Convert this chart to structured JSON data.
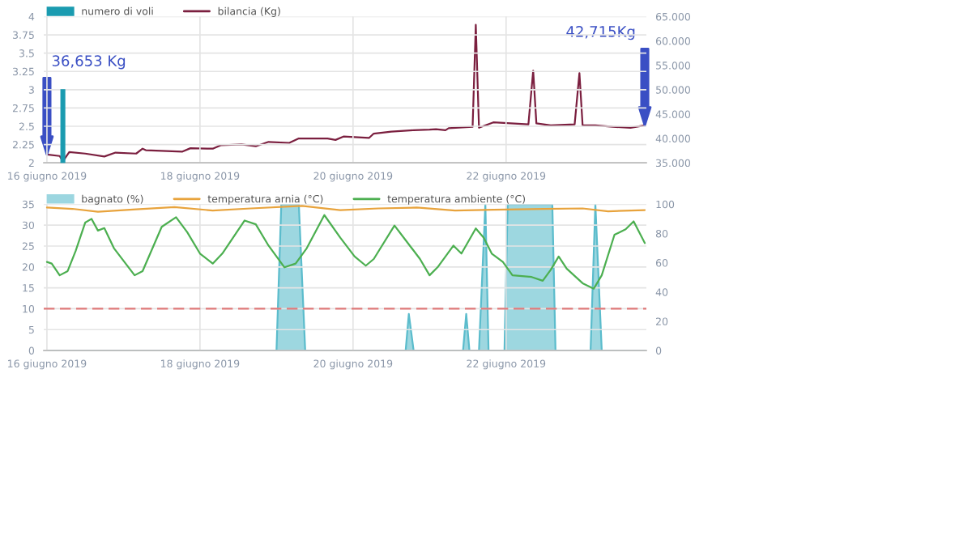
{
  "chart_data": [
    {
      "type": "line",
      "xlim": [
        "2019-06-15T23:00",
        "2019-06-23T20:00"
      ],
      "xticks": [
        {
          "value": "2019-06-16",
          "label": "16 giugno 2019"
        },
        {
          "value": "2019-06-18",
          "label": "18 giugno 2019"
        },
        {
          "value": "2019-06-20",
          "label": "20 giugno 2019"
        },
        {
          "value": "2019-06-22",
          "label": "22 giugno 2019"
        }
      ],
      "ylim": [
        2,
        4
      ],
      "yticks": [
        2,
        2.25,
        2.5,
        2.75,
        3,
        3.25,
        3.5,
        3.75,
        4
      ],
      "y2lim": [
        35,
        65
      ],
      "y2ticks": [
        {
          "value": 35,
          "label": "35.000"
        },
        {
          "value": 40,
          "label": "40.000"
        },
        {
          "value": 45,
          "label": "45.000"
        },
        {
          "value": 50,
          "label": "50.000"
        },
        {
          "value": 55,
          "label": "55.000"
        },
        {
          "value": 60,
          "label": "60.000"
        },
        {
          "value": 65,
          "label": "65.000"
        }
      ],
      "grid": true,
      "legend": "top left",
      "series": [
        {
          "type": "bar",
          "name": "numero di voli",
          "color": "#1a9bb0",
          "x": [
            "2019-06-16T05:00"
          ],
          "values": [
            3
          ]
        },
        {
          "type": "line",
          "axis": "y2",
          "name": "bilancia (Kg)",
          "color": "#7b1f3f",
          "x": [
            "2019-06-16T00:00",
            "2019-06-16T04:00",
            "2019-06-16T05:00",
            "2019-06-16T07:00",
            "2019-06-16T12:00",
            "2019-06-16T18:00",
            "2019-06-16T21:30",
            "2019-06-17T04:00",
            "2019-06-17T06:00",
            "2019-06-17T07:00",
            "2019-06-17T18:30",
            "2019-06-17T21:00",
            "2019-06-18T04:00",
            "2019-06-18T06:30",
            "2019-06-18T13:00",
            "2019-06-18T17:30",
            "2019-06-18T21:30",
            "2019-06-19T04:00",
            "2019-06-19T07:00",
            "2019-06-19T16:00",
            "2019-06-19T18:30",
            "2019-06-19T21:00",
            "2019-06-20T05:00",
            "2019-06-20T06:30",
            "2019-06-20T12:00",
            "2019-06-20T19:00",
            "2019-06-21T00:00",
            "2019-06-21T02:00",
            "2019-06-21T05:00",
            "2019-06-21T06:00",
            "2019-06-21T13:30",
            "2019-06-21T14:30",
            "2019-06-21T15:30",
            "2019-06-21T20:00",
            "2019-06-22T01:30",
            "2019-06-22T07:00",
            "2019-06-22T08:30",
            "2019-06-22T09:30",
            "2019-06-22T14:00",
            "2019-06-22T21:30",
            "2019-06-22T23:00",
            "2019-06-23T00:00",
            "2019-06-23T04:00",
            "2019-06-23T09:30",
            "2019-06-23T15:00",
            "2019-06-23T19:30"
          ],
          "values": [
            36.7,
            36.4,
            35.3,
            37.2,
            36.9,
            36.3,
            37.1,
            36.9,
            37.9,
            37.6,
            37.3,
            38.0,
            37.9,
            38.6,
            38.8,
            38.4,
            39.3,
            39.1,
            40.0,
            40.0,
            39.7,
            40.4,
            40.1,
            41.0,
            41.4,
            41.7,
            41.8,
            41.9,
            41.7,
            42.1,
            42.4,
            63.3,
            42.2,
            43.3,
            43.1,
            42.9,
            53.9,
            43.1,
            42.7,
            42.9,
            53.4,
            42.7,
            42.7,
            42.4,
            42.2,
            42.7
          ]
        }
      ],
      "annotations": [
        "36,653 Kg",
        "42,715Kg"
      ]
    },
    {
      "type": "line",
      "xlim": [
        "2019-06-15T23:00",
        "2019-06-23T20:00"
      ],
      "xticks": [
        {
          "value": "2019-06-16",
          "label": "16 giugno 2019"
        },
        {
          "value": "2019-06-18",
          "label": "18 giugno 2019"
        },
        {
          "value": "2019-06-20",
          "label": "20 giugno 2019"
        },
        {
          "value": "2019-06-22",
          "label": "22 giugno 2019"
        }
      ],
      "ylim": [
        0,
        35
      ],
      "yticks": [
        0,
        5,
        10,
        15,
        20,
        25,
        30,
        35
      ],
      "y2lim": [
        0,
        100
      ],
      "y2ticks": [
        0,
        20,
        40,
        60,
        80,
        100
      ],
      "grid": true,
      "legend": "top left",
      "ref_lines": [
        {
          "axis": "y",
          "value": 10,
          "color": "#e07a7a",
          "line_style": "dashed"
        }
      ],
      "series": [
        {
          "type": "area",
          "axis": "y2",
          "name": "bagnato (%)",
          "color": "#5bbccc",
          "x": [
            "2019-06-16T00:00",
            "2019-06-19T00:00",
            "2019-06-19T01:30",
            "2019-06-19T07:00",
            "2019-06-19T09:00",
            "2019-06-20T16:30",
            "2019-06-20T17:30",
            "2019-06-20T19:00",
            "2019-06-21T10:30",
            "2019-06-21T11:30",
            "2019-06-21T12:30",
            "2019-06-21T15:30",
            "2019-06-21T17:30",
            "2019-06-21T18:30",
            "2019-06-21T23:30",
            "2019-06-22T00:30",
            "2019-06-22T14:30",
            "2019-06-22T15:30",
            "2019-06-23T02:30",
            "2019-06-23T04:00",
            "2019-06-23T06:00",
            "2019-06-23T19:30"
          ],
          "values": [
            0,
            0,
            100,
            100,
            0,
            0,
            25,
            0,
            0,
            25,
            0,
            0,
            100,
            0,
            0,
            100,
            100,
            0,
            0,
            100,
            0,
            0
          ]
        },
        {
          "type": "line",
          "name": "temperatura arnia (°C)",
          "color": "#e8a33c",
          "x": [
            "2019-06-16T00:00",
            "2019-06-16T08:00",
            "2019-06-16T16:00",
            "2019-06-17T04:00",
            "2019-06-17T16:00",
            "2019-06-18T04:00",
            "2019-06-18T16:00",
            "2019-06-19T08:00",
            "2019-06-19T20:00",
            "2019-06-20T08:00",
            "2019-06-20T20:00",
            "2019-06-21T08:00",
            "2019-06-21T20:00",
            "2019-06-22T12:00",
            "2019-06-23T00:00",
            "2019-06-23T08:00",
            "2019-06-23T19:30"
          ],
          "values": [
            34.2,
            33.9,
            33.2,
            33.8,
            34.3,
            33.5,
            34.0,
            34.6,
            33.6,
            34.0,
            34.2,
            33.5,
            33.7,
            33.9,
            34.0,
            33.3,
            33.6
          ]
        },
        {
          "type": "line",
          "name": "temperatura ambiente (°C)",
          "color": "#4caf50",
          "x": [
            "2019-06-16T00:00",
            "2019-06-16T01:30",
            "2019-06-16T04:00",
            "2019-06-16T06:30",
            "2019-06-16T09:00",
            "2019-06-16T12:00",
            "2019-06-16T14:00",
            "2019-06-16T16:00",
            "2019-06-16T18:00",
            "2019-06-16T21:00",
            "2019-06-17T03:30",
            "2019-06-17T06:00",
            "2019-06-17T12:00",
            "2019-06-17T16:30",
            "2019-06-17T20:00",
            "2019-06-18T00:00",
            "2019-06-18T04:00",
            "2019-06-18T07:00",
            "2019-06-18T14:00",
            "2019-06-18T17:30",
            "2019-06-18T21:30",
            "2019-06-19T02:30",
            "2019-06-19T06:00",
            "2019-06-19T09:30",
            "2019-06-19T15:00",
            "2019-06-19T20:00",
            "2019-06-20T00:30",
            "2019-06-20T04:00",
            "2019-06-20T06:30",
            "2019-06-20T13:00",
            "2019-06-20T16:30",
            "2019-06-20T21:00",
            "2019-06-21T00:00",
            "2019-06-21T02:30",
            "2019-06-21T07:30",
            "2019-06-21T10:00",
            "2019-06-21T14:30",
            "2019-06-21T17:00",
            "2019-06-21T19:30",
            "2019-06-21T23:00",
            "2019-06-22T02:00",
            "2019-06-22T08:00",
            "2019-06-22T11:30",
            "2019-06-22T14:00",
            "2019-06-22T16:30",
            "2019-06-22T19:00",
            "2019-06-23T00:00",
            "2019-06-23T03:30",
            "2019-06-23T06:00",
            "2019-06-23T10:00",
            "2019-06-23T13:30",
            "2019-06-23T16:00",
            "2019-06-23T19:30"
          ],
          "values": [
            21.2,
            20.8,
            18.0,
            19.0,
            23.8,
            30.6,
            31.5,
            28.7,
            29.3,
            24.5,
            18.0,
            19.0,
            29.6,
            31.9,
            28.3,
            23.2,
            20.8,
            23.2,
            31.1,
            30.2,
            25.1,
            19.9,
            20.8,
            24.5,
            32.4,
            27.0,
            22.5,
            20.3,
            21.9,
            29.9,
            26.4,
            21.9,
            18.0,
            19.9,
            25.1,
            23.2,
            29.2,
            27.0,
            23.2,
            21.2,
            18.0,
            17.6,
            16.7,
            19.3,
            22.5,
            19.6,
            16.1,
            14.8,
            18.0,
            27.7,
            29.0,
            30.9,
            25.7
          ]
        }
      ]
    }
  ]
}
